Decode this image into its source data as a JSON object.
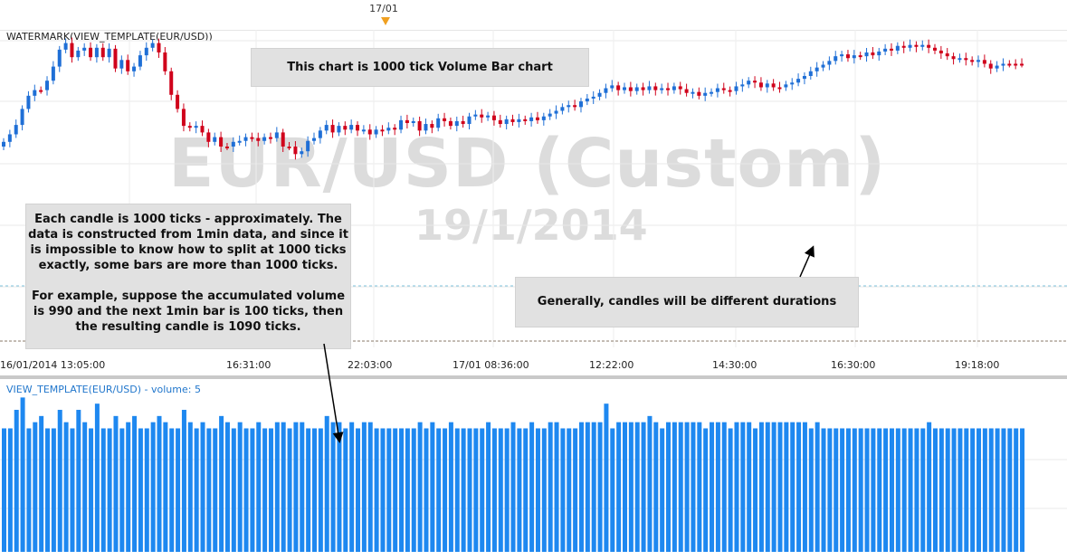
{
  "header": {
    "date_marker": "17/01"
  },
  "price_panel": {
    "title": "WATERMARK(VIEW_TEMPLATE(EUR/USD))",
    "watermark_symbol": "EUR/USD (Custom)",
    "watermark_date": "19/1/2014"
  },
  "volume_panel": {
    "title": "VIEW_TEMPLATE(EUR/USD) - volume: 5"
  },
  "annotations": {
    "chart_type": "This chart is 1000 tick Volume Bar chart",
    "ticks_para1": "Each candle is 1000 ticks - approximately. The data is constructed from 1min data, and since it is impossible to know how to split at 1000 ticks exactly, some bars are more than 1000 ticks.",
    "ticks_para2": "For example, suppose the accumulated volume is 990 and the next 1min bar is 100 ticks, then the resulting candle is 1090 ticks.",
    "durations": "Generally, candles will be different durations"
  },
  "colors": {
    "bull": "#1f6fd6",
    "bear": "#d0021b",
    "volume": "#1e88f0",
    "note_bg": "#e1e1e1",
    "watermark": "#dcdcdc"
  },
  "chart_data": [
    {
      "type": "candlestick",
      "title": "WATERMARK(VIEW_TEMPLATE(EUR/USD))",
      "x_tick_labels": [
        "16/01/2014 13:05:00",
        "16:31:00",
        "22:03:00",
        "17/01 08:36:00",
        "12:22:00",
        "14:30:00",
        "16:30:00",
        "19:18:00"
      ],
      "candle_count": 165,
      "ohlc": [
        [
          0.0,
          0.0,
          -1.0,
          -1.0
        ],
        [
          -1.0,
          -0.6,
          -2.6,
          -2.6
        ],
        [
          -2.6,
          -4.6,
          -2.6,
          -4.6
        ],
        [
          -4.6,
          -8.0,
          -4.6,
          -8.0
        ],
        [
          -8.0,
          -10.8,
          -8.0,
          -10.8
        ],
        [
          -10.8,
          -12.0,
          -10.8,
          -12.0
        ],
        [
          -12.0,
          -12.0,
          -12.0,
          -12.0
        ],
        [
          -12.0,
          -14.0,
          -11.6,
          -14.0
        ],
        [
          -14.0,
          -17.0,
          -14.0,
          -17.0
        ],
        [
          -17.0,
          -20.6,
          -17.0,
          -20.6
        ],
        [
          -20.6,
          -22.0,
          -20.6,
          -22.0
        ],
        [
          -22.0,
          -22.0,
          -19.0,
          -19.0
        ],
        [
          -19.0,
          -18.4,
          -20.4,
          -20.4
        ],
        [
          -20.4,
          -21.0,
          -20.4,
          -21.0
        ],
        [
          -21.0,
          -21.0,
          -19.0,
          -19.0
        ],
        [
          -19.0,
          -19.0,
          -21.0,
          -21.0
        ],
        [
          -21.0,
          -21.0,
          -19.0,
          -19.0
        ],
        [
          -19.0,
          -18.4,
          -20.8,
          -20.8
        ],
        [
          -20.8,
          -21.4,
          -16.6,
          -16.6
        ],
        [
          -16.6,
          -16.0,
          -18.4,
          -18.4
        ],
        [
          -18.4,
          -18.6,
          -16.0,
          -16.0
        ],
        [
          -16.0,
          -15.4,
          -17.0,
          -17.0
        ],
        [
          -17.0,
          -19.4,
          -17.0,
          -19.4
        ],
        [
          -19.4,
          -21.0,
          -19.4,
          -21.0
        ],
        [
          -21.0,
          -22.0,
          -21.0,
          -22.0
        ],
        [
          -22.0,
          -22.0,
          -20.0,
          -20.0
        ],
        [
          -20.0,
          -19.6,
          -16.0,
          -16.0
        ],
        [
          -16.0,
          -16.0,
          -11.0,
          -11.0
        ],
        [
          -11.0,
          -10.6,
          -8.0,
          -8.0
        ],
        [
          -8.0,
          -6.8,
          -4.4,
          -4.4
        ],
        [
          -4.4,
          -4.0,
          -4.0,
          -4.0
        ],
        [
          -4.0,
          -3.6,
          -4.4,
          -4.4
        ],
        [
          -4.4,
          -4.4,
          -3.0,
          -3.0
        ],
        [
          -3.0,
          -3.0,
          -1.0,
          -1.0
        ],
        [
          -1.0,
          -0.6,
          -2.0,
          -2.0
        ],
        [
          -2.0,
          -2.0,
          0.0,
          0.0
        ],
        [
          0.0,
          0.4,
          0.4,
          0.0
        ],
        [
          0.0,
          0.0,
          -1.0,
          -1.0
        ],
        [
          -1.0,
          -1.0,
          -1.2,
          -1.2
        ],
        [
          -1.2,
          -2.0,
          -1.2,
          -2.0
        ],
        [
          -2.0,
          -2.0,
          -1.8,
          -1.8
        ],
        [
          -1.8,
          -1.8,
          -1.2,
          -1.2
        ],
        [
          -1.2,
          -0.8,
          -2.0,
          -2.0
        ],
        [
          -2.0,
          -2.4,
          -1.8,
          -1.8
        ],
        [
          -1.8,
          -1.6,
          -3.0,
          -3.0
        ],
        [
          -3.0,
          -3.0,
          0.0,
          0.0
        ],
        [
          0.0,
          0.4,
          0.0,
          0.0
        ],
        [
          0.0,
          0.0,
          1.6,
          1.6
        ],
        [
          1.6,
          2.0,
          1.0,
          1.0
        ],
        [
          1.0,
          1.0,
          -1.2,
          -1.2
        ],
        [
          -1.2,
          -1.8,
          -1.2,
          -1.8
        ],
        [
          -1.8,
          -1.8,
          -3.4,
          -3.4
        ],
        [
          -3.4,
          -3.4,
          -4.6,
          -4.6
        ],
        [
          -4.6,
          -5.0,
          -3.0,
          -3.0
        ],
        [
          -3.0,
          -2.8,
          -4.4,
          -4.4
        ],
        [
          -4.4,
          -4.6,
          -3.6,
          -3.6
        ],
        [
          -3.6,
          -3.4,
          -4.6,
          -4.6
        ],
        [
          -4.6,
          -5.0,
          -3.4,
          -3.4
        ],
        [
          -3.4,
          -3.0,
          -3.6,
          -3.6
        ],
        [
          -3.6,
          -3.6,
          -2.6,
          -2.6
        ],
        [
          -2.6,
          -2.4,
          -3.6,
          -3.6
        ],
        [
          -3.6,
          -4.0,
          -3.4,
          -3.4
        ],
        [
          -3.4,
          -3.4,
          -4.0,
          -4.0
        ],
        [
          -4.0,
          -4.4,
          -3.6,
          -3.6
        ],
        [
          -3.6,
          -3.4,
          -5.6,
          -5.6
        ],
        [
          -5.6,
          -6.0,
          -5.0,
          -5.0
        ],
        [
          -5.0,
          -4.8,
          -5.4,
          -5.4
        ],
        [
          -5.4,
          -5.6,
          -3.4,
          -3.4
        ],
        [
          -3.4,
          -3.0,
          -4.8,
          -4.8
        ],
        [
          -4.8,
          -5.0,
          -4.0,
          -4.0
        ],
        [
          -4.0,
          -3.8,
          -6.0,
          -6.0
        ],
        [
          -6.0,
          -6.6,
          -5.4,
          -5.4
        ],
        [
          -5.4,
          -5.4,
          -4.4,
          -4.4
        ],
        [
          -4.4,
          -4.2,
          -5.4,
          -5.4
        ],
        [
          -5.4,
          -5.8,
          -4.8,
          -4.8
        ],
        [
          -4.8,
          -4.8,
          -6.4,
          -6.4
        ],
        [
          -6.4,
          -6.8,
          -6.4,
          -6.8
        ],
        [
          -6.8,
          -6.8,
          -6.2,
          -6.2
        ],
        [
          -6.2,
          -6.0,
          -6.6,
          -6.6
        ],
        [
          -6.6,
          -6.6,
          -5.6,
          -5.6
        ],
        [
          -5.6,
          -5.2,
          -4.8,
          -4.8
        ],
        [
          -4.8,
          -4.8,
          -5.8,
          -5.8
        ],
        [
          -5.8,
          -6.0,
          -5.2,
          -5.2
        ],
        [
          -5.2,
          -4.8,
          -5.8,
          -5.8
        ],
        [
          -5.8,
          -6.2,
          -5.4,
          -5.4
        ],
        [
          -5.4,
          -5.2,
          -6.2,
          -6.2
        ],
        [
          -6.2,
          -6.6,
          -5.6,
          -5.6
        ],
        [
          -5.6,
          -5.6,
          -6.4,
          -6.4
        ],
        [
          -6.4,
          -6.8,
          -7.0,
          -7.0
        ],
        [
          -7.0,
          -7.6,
          -7.0,
          -7.6
        ],
        [
          -7.6,
          -8.4,
          -7.6,
          -8.4
        ],
        [
          -8.4,
          -8.8,
          -8.4,
          -8.8
        ],
        [
          -8.8,
          -9.0,
          -8.4,
          -8.4
        ],
        [
          -8.4,
          -8.2,
          -9.6,
          -9.6
        ],
        [
          -9.6,
          -10.2,
          -9.6,
          -10.2
        ],
        [
          -10.2,
          -10.6,
          -10.2,
          -10.6
        ],
        [
          -10.6,
          -11.4,
          -10.6,
          -11.4
        ],
        [
          -11.4,
          -12.4,
          -11.4,
          -12.4
        ],
        [
          -12.4,
          -13.0,
          -12.4,
          -13.0
        ],
        [
          -13.0,
          -13.4,
          -12.0,
          -12.0
        ],
        [
          -12.0,
          -11.6,
          -12.6,
          -12.6
        ],
        [
          -12.6,
          -12.6,
          -11.8,
          -11.8
        ],
        [
          -11.8,
          -11.4,
          -12.6,
          -12.6
        ],
        [
          -12.6,
          -12.8,
          -12.0,
          -12.0
        ],
        [
          -12.0,
          -11.6,
          -12.8,
          -12.8
        ],
        [
          -12.8,
          -13.0,
          -12.0,
          -12.0
        ],
        [
          -12.0,
          -11.6,
          -12.4,
          -12.4
        ],
        [
          -12.4,
          -12.8,
          -12.0,
          -12.0
        ],
        [
          -12.0,
          -11.8,
          -12.8,
          -12.8
        ],
        [
          -12.8,
          -13.2,
          -12.2,
          -12.2
        ],
        [
          -12.2,
          -12.2,
          -11.4,
          -11.4
        ],
        [
          -11.4,
          -11.2,
          -11.6,
          -11.6
        ],
        [
          -11.6,
          -11.6,
          -10.8,
          -10.8
        ],
        [
          -10.8,
          -10.2,
          -11.4,
          -11.4
        ],
        [
          -11.4,
          -11.6,
          -11.6,
          -11.6
        ],
        [
          -11.6,
          -12.4,
          -11.6,
          -12.4
        ],
        [
          -12.4,
          -13.0,
          -12.0,
          -12.0
        ],
        [
          -12.0,
          -11.6,
          -11.8,
          -11.8
        ],
        [
          -11.8,
          -11.8,
          -12.8,
          -12.8
        ],
        [
          -12.8,
          -13.2,
          -13.2,
          -13.2
        ],
        [
          -13.2,
          -14.0,
          -13.2,
          -14.0
        ],
        [
          -14.0,
          -14.2,
          -13.6,
          -13.6
        ],
        [
          -13.6,
          -13.6,
          -12.6,
          -12.6
        ],
        [
          -12.6,
          -12.4,
          -13.4,
          -13.4
        ],
        [
          -13.4,
          -13.6,
          -12.6,
          -12.6
        ],
        [
          -12.6,
          -12.6,
          -12.6,
          -12.6
        ],
        [
          -12.6,
          -12.6,
          -13.2,
          -13.2
        ],
        [
          -13.2,
          -13.4,
          -13.6,
          -13.6
        ],
        [
          -13.6,
          -14.4,
          -13.6,
          -14.4
        ],
        [
          -14.4,
          -15.0,
          -14.4,
          -15.0
        ],
        [
          -15.0,
          -16.0,
          -15.0,
          -16.0
        ],
        [
          -16.0,
          -16.8,
          -16.0,
          -16.8
        ],
        [
          -16.8,
          -17.4,
          -16.8,
          -17.4
        ],
        [
          -17.4,
          -18.2,
          -17.4,
          -18.2
        ],
        [
          -18.2,
          -19.2,
          -18.2,
          -19.2
        ],
        [
          -19.2,
          -19.6,
          -19.2,
          -19.6
        ],
        [
          -19.6,
          -20.0,
          -18.8,
          -18.8
        ],
        [
          -18.8,
          -18.6,
          -19.4,
          -19.4
        ],
        [
          -19.4,
          -19.8,
          -19.2,
          -19.2
        ],
        [
          -19.2,
          -19.2,
          -20.0,
          -20.0
        ],
        [
          -20.0,
          -20.6,
          -19.4,
          -19.4
        ],
        [
          -19.4,
          -19.4,
          -20.2,
          -20.2
        ],
        [
          -20.2,
          -20.8,
          -20.8,
          -20.8
        ],
        [
          -20.8,
          -21.0,
          -20.4,
          -20.4
        ],
        [
          -20.4,
          -20.2,
          -21.4,
          -21.4
        ],
        [
          -21.4,
          -21.6,
          -21.0,
          -21.0
        ],
        [
          -21.0,
          -20.8,
          -21.6,
          -21.6
        ],
        [
          -21.6,
          -22.2,
          -21.2,
          -21.2
        ],
        [
          -21.2,
          -21.2,
          -21.6,
          -21.6
        ],
        [
          -21.6,
          -22.0,
          -21.0,
          -21.0
        ],
        [
          -21.0,
          -20.8,
          -20.4,
          -20.4
        ],
        [
          -20.4,
          -20.4,
          -19.8,
          -19.8
        ],
        [
          -19.8,
          -19.4,
          -19.2,
          -19.2
        ],
        [
          -19.2,
          -19.2,
          -18.6,
          -18.6
        ],
        [
          -18.6,
          -18.0,
          -18.8,
          -18.8
        ],
        [
          -18.8,
          -19.0,
          -18.4,
          -18.4
        ],
        [
          -18.4,
          -18.2,
          -18.0,
          -18.0
        ],
        [
          -18.0,
          -17.4,
          -18.4,
          -18.4
        ],
        [
          -18.4,
          -18.8,
          -17.6,
          -17.6
        ],
        [
          -17.6,
          -17.0,
          -16.6,
          -16.6
        ],
        [
          -16.6,
          -16.0,
          -17.2,
          -17.2
        ],
        [
          -17.2,
          -17.6,
          -17.6,
          -17.6
        ],
        [
          -17.6,
          -17.6,
          -17.6,
          -17.6
        ],
        [
          -17.6,
          -17.6,
          -17.6,
          -17.6
        ],
        [
          -17.6,
          -17.6,
          -17.6,
          -17.6
        ]
      ]
    },
    {
      "type": "bar",
      "title": "VIEW_TEMPLATE(EUR/USD) - volume: 5",
      "volumes": [
        1000,
        1000,
        1150,
        1250,
        1000,
        1050,
        1100,
        1000,
        1000,
        1150,
        1050,
        1000,
        1150,
        1050,
        1000,
        1200,
        1000,
        1000,
        1100,
        1000,
        1050,
        1100,
        1000,
        1000,
        1050,
        1100,
        1050,
        1000,
        1000,
        1150,
        1050,
        1000,
        1050,
        1000,
        1000,
        1100,
        1050,
        1000,
        1050,
        1000,
        1000,
        1050,
        1000,
        1000,
        1050,
        1050,
        1000,
        1050,
        1050,
        1000,
        1000,
        1000,
        1100,
        1050,
        1050,
        1000,
        1050,
        1000,
        1050,
        1050,
        1000,
        1000,
        1000,
        1000,
        1000,
        1000,
        1000,
        1050,
        1000,
        1050,
        1000,
        1000,
        1050,
        1000,
        1000,
        1000,
        1000,
        1000,
        1050,
        1000,
        1000,
        1000,
        1050,
        1000,
        1000,
        1050,
        1000,
        1000,
        1050,
        1050,
        1000,
        1000,
        1000,
        1050,
        1050,
        1050,
        1050,
        1200,
        1000,
        1050,
        1050,
        1050,
        1050,
        1050,
        1100,
        1050,
        1000,
        1050,
        1050,
        1050,
        1050,
        1050,
        1050,
        1000,
        1050,
        1050,
        1050,
        1000,
        1050,
        1050,
        1050,
        1000,
        1050,
        1050,
        1050,
        1050,
        1050,
        1050,
        1050,
        1050,
        1000,
        1050,
        1000,
        1000,
        1000,
        1000,
        1000,
        1000,
        1000,
        1000,
        1000,
        1000,
        1000,
        1000,
        1000,
        1000,
        1000,
        1000,
        1000,
        1050,
        1000,
        1000,
        1000,
        1000,
        1000,
        1000,
        1000,
        1000,
        1000,
        1000,
        1000,
        1000,
        1000,
        1000,
        1000
      ]
    }
  ]
}
